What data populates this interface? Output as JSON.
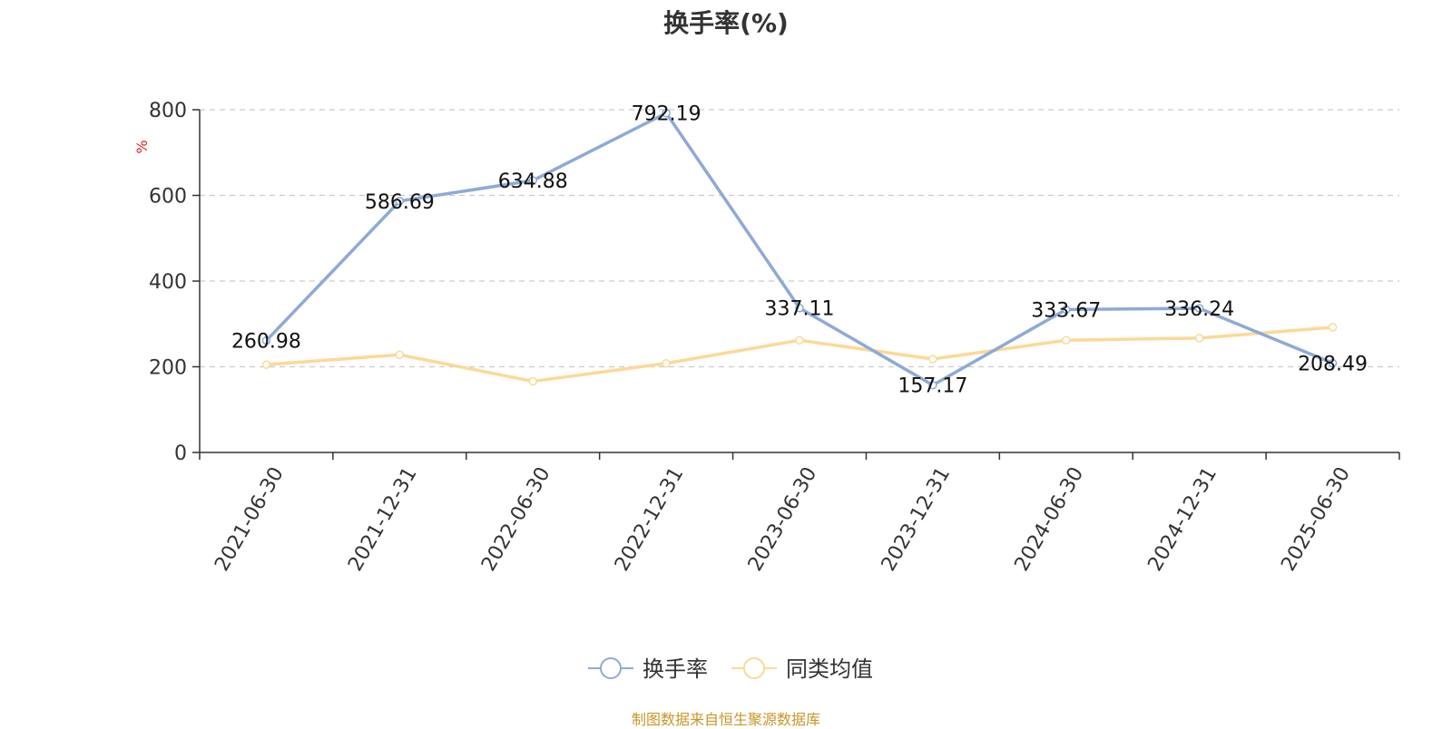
{
  "chart_data": {
    "type": "line",
    "title": "换手率(%)",
    "ylabel": "%",
    "xlabel": "",
    "ylim": [
      0,
      800
    ],
    "yticks": [
      0,
      200,
      400,
      600,
      800
    ],
    "grid": true,
    "legend_position": "bottom",
    "categories": [
      "2021-06-30",
      "2021-12-31",
      "2022-06-30",
      "2022-12-31",
      "2023-06-30",
      "2023-12-31",
      "2024-06-30",
      "2024-12-31",
      "2025-06-30"
    ],
    "series": [
      {
        "name": "换手率",
        "color": "#8eaad6",
        "values": [
          260.98,
          586.69,
          634.88,
          792.19,
          337.11,
          157.17,
          333.67,
          336.24,
          208.49
        ],
        "show_labels": true
      },
      {
        "name": "同类均值",
        "color": "#fcd997",
        "values": [
          205,
          228,
          166,
          208,
          262,
          218,
          262,
          267,
          292
        ],
        "show_labels": false
      }
    ]
  },
  "source_note": "制图数据来自恒生聚源数据库",
  "colors": {
    "axis": "#333333",
    "grid": "#cccccc",
    "ylabel": "#e02020",
    "source_note": "#c8962a"
  }
}
